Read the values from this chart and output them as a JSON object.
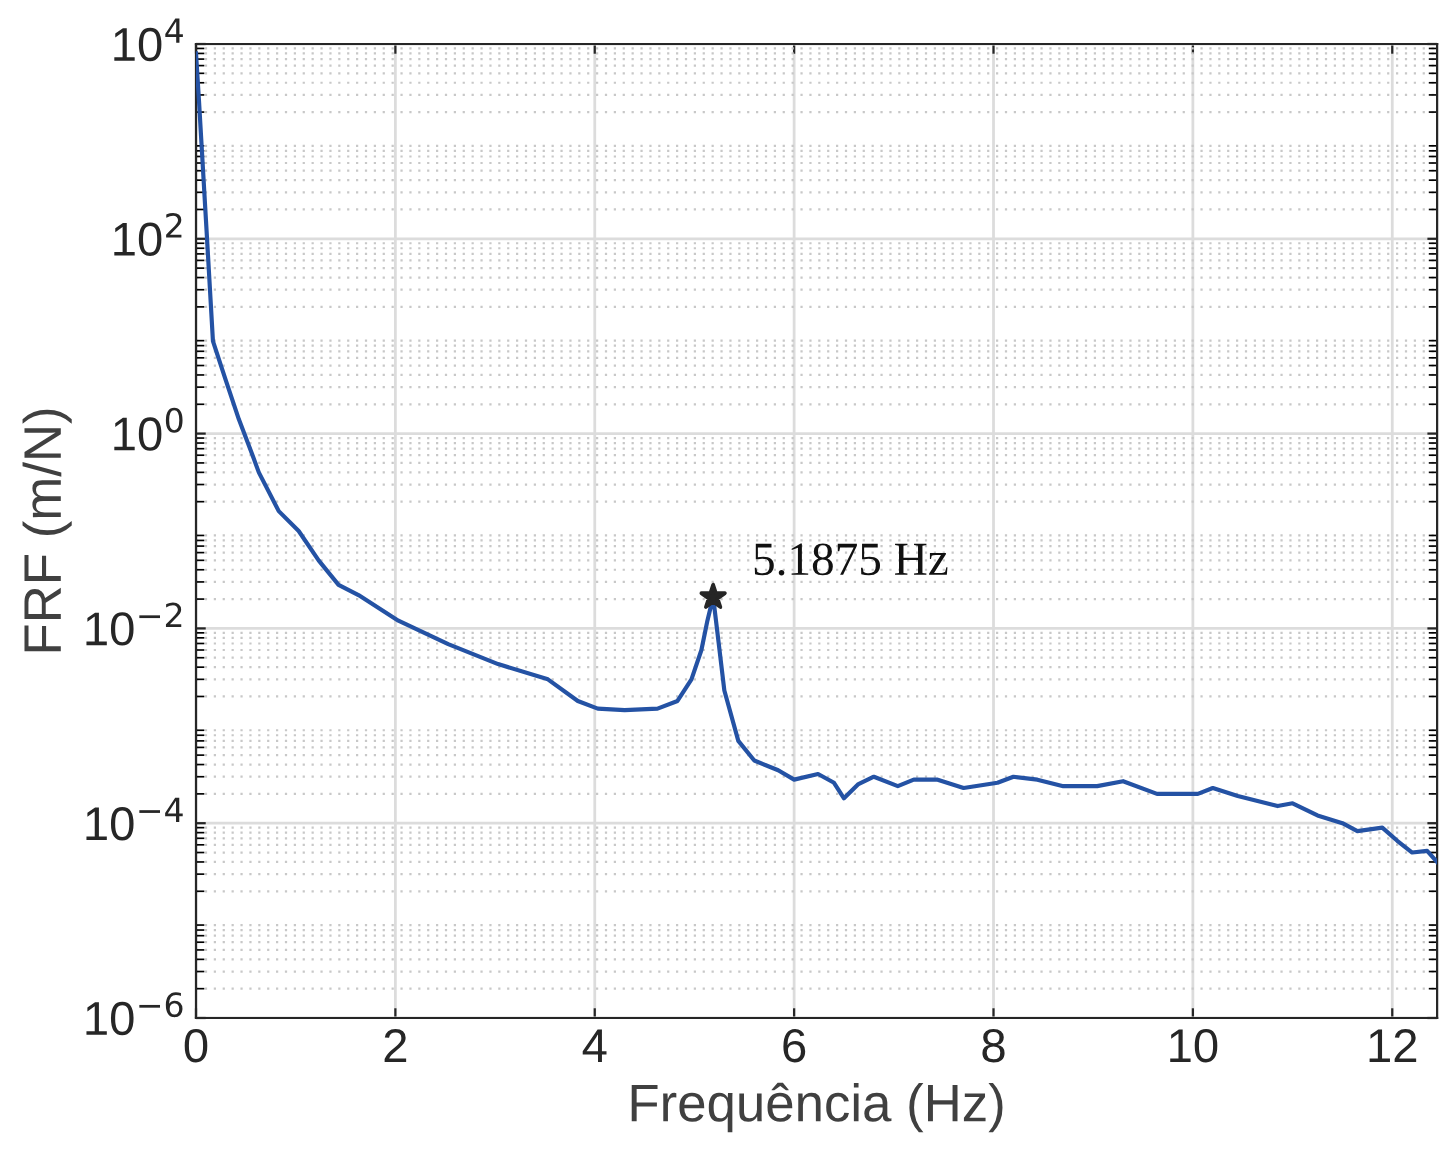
{
  "chart_data": {
    "type": "line",
    "xlabel": "Frequência (Hz)",
    "ylabel": "FRF (m/N)",
    "log": "y",
    "grid": true,
    "xlim": [
      0,
      12.45
    ],
    "xticks": [
      0,
      2,
      4,
      6,
      8,
      10,
      12
    ],
    "ylim": [
      1e-06,
      10000
    ],
    "yticks": [
      {
        "value": 1e-06,
        "label": "10$^{−6}$"
      },
      {
        "value": 0.0001,
        "label": "10$^{−4}$"
      },
      {
        "value": 0.01,
        "label": "10$^{−2}$"
      },
      {
        "value": 1,
        "label": "10$^{0}$"
      },
      {
        "value": 100,
        "label": "10$^{2}$"
      },
      {
        "value": 10000,
        "label": "10$^{4}$"
      }
    ],
    "series": [
      {
        "color": "#2452a4",
        "marker": "none",
        "x": [
          0,
          0.03,
          0.1,
          0.17,
          0.3,
          0.43,
          0.57,
          0.63,
          0.83,
          1.03,
          1.23,
          1.43,
          1.63,
          2.03,
          2.53,
          3.03,
          3.53,
          3.83,
          4.03,
          4.3,
          4.63,
          4.83,
          4.97,
          5.07,
          5.13,
          5.1875,
          5.24,
          5.3,
          5.44,
          5.6,
          5.84,
          6.0,
          6.24,
          6.4,
          6.5,
          6.64,
          6.8,
          7.04,
          7.2,
          7.44,
          7.7,
          8.04,
          8.2,
          8.44,
          8.7,
          9.04,
          9.3,
          9.64,
          10.05,
          10.2,
          10.45,
          10.85,
          11.0,
          11.25,
          11.5,
          11.65,
          11.9,
          12.05,
          12.2,
          12.35,
          12.45
        ],
        "values": [
          8000,
          2600,
          155,
          8.9,
          3.5,
          1.4,
          0.59,
          0.4,
          0.16,
          0.1,
          0.05,
          0.028,
          0.022,
          0.012,
          0.0069,
          0.0043,
          0.003,
          0.0018,
          0.0015,
          0.00145,
          0.0015,
          0.0018,
          0.003,
          0.006,
          0.012,
          0.021,
          0.0075,
          0.0023,
          0.0007,
          0.00044,
          0.00035,
          0.00028,
          0.00032,
          0.00026,
          0.00018,
          0.00025,
          0.0003,
          0.00024,
          0.00028,
          0.00028,
          0.00023,
          0.00026,
          0.0003,
          0.00028,
          0.00024,
          0.00024,
          0.00027,
          0.0002,
          0.0002,
          0.00023,
          0.00019,
          0.00015,
          0.00016,
          0.00012,
          0.0001,
          8.3e-05,
          9e-05,
          6.6e-05,
          5e-05,
          5.2e-05,
          4e-05
        ]
      },
      {
        "type": "scatter",
        "color": "#262626",
        "marker": "star",
        "x": [
          5.1875
        ],
        "values": [
          0.021
        ]
      }
    ],
    "annotations": [
      {
        "text": "5.1875 Hz",
        "x": 5.1875,
        "y": 0.021
      }
    ]
  }
}
